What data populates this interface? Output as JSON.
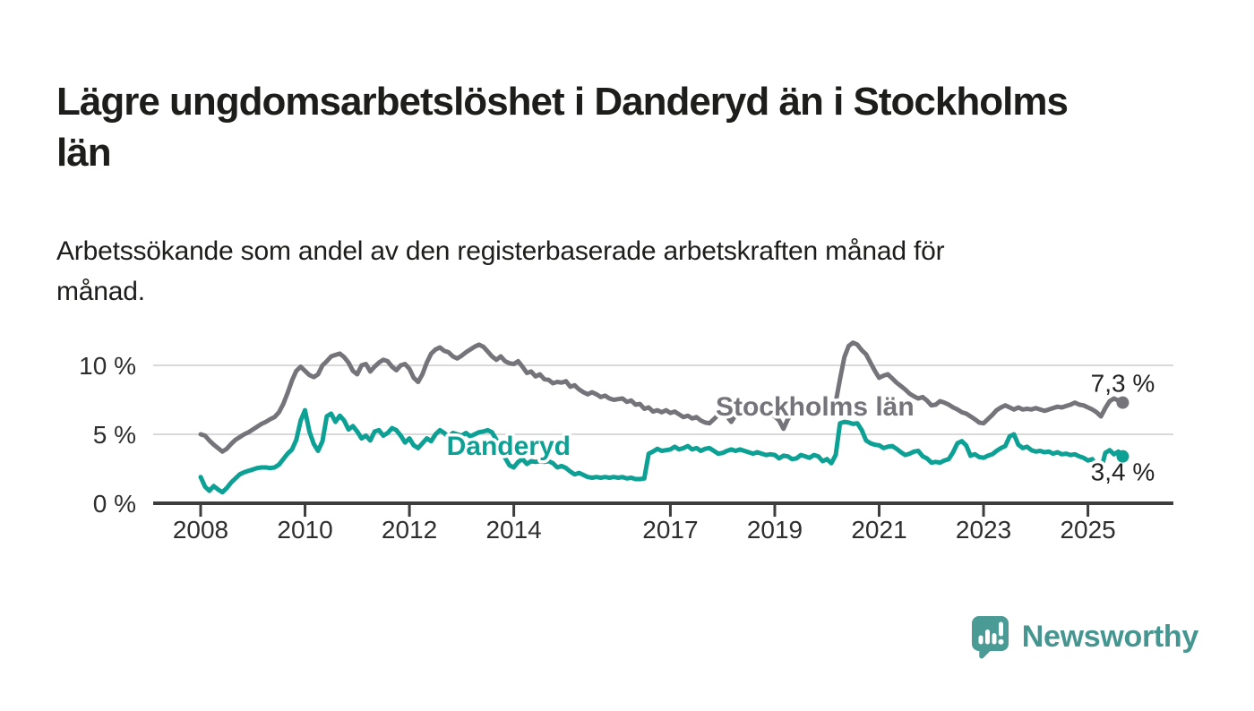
{
  "header": {
    "title_line1": "Lägre ungdomsarbetslöshet i Danderyd än i Stockholms",
    "title_line2": "län",
    "subtitle_line1": "Arbetssökande som andel av den registerbaserade arbetskraften månad för",
    "subtitle_line2": "månad."
  },
  "footer": {
    "brand": "Newsworthy"
  },
  "colors": {
    "text_dark": "#1d1d1b",
    "gray_series": "#75747a",
    "teal_series": "#0da094",
    "grid": "#d9d9d9",
    "axis": "#3d3d3d",
    "axis_label": "#2e2e2e",
    "annotation": "#222222",
    "logo_teal": "#4a9b95"
  },
  "chart_data": {
    "type": "line",
    "title": "Lägre ungdomsarbetslöshet i Danderyd än i Stockholms län",
    "subtitle": "Arbetssökande som andel av den registerbaserade arbetskraften månad för månad.",
    "unit": "%",
    "grid": true,
    "legend_position": "inline-labels",
    "x_axis": {
      "ticks": [
        2008,
        2010,
        2012,
        2014,
        2017,
        2019,
        2021,
        2023,
        2025
      ],
      "range": [
        2007.1,
        2026.6
      ]
    },
    "y_axis": {
      "ticks": [
        {
          "value": 0,
          "label": "0 %"
        },
        {
          "value": 5,
          "label": "5 %"
        },
        {
          "value": 10,
          "label": "10 %"
        }
      ],
      "gridlines": [
        5,
        10
      ],
      "range": [
        0,
        12.5
      ]
    },
    "series": [
      {
        "name": "Stockholms län",
        "color": "#75747a",
        "label_anchor": {
          "year": 2019.77,
          "value": 6.35
        },
        "end_label": "7,3 %",
        "end_label_position": "above",
        "end_value": 7.3,
        "start_year": 2008,
        "values": [
          5.0,
          4.9,
          4.55,
          4.25,
          4.0,
          3.75,
          3.95,
          4.3,
          4.6,
          4.8,
          5.0,
          5.15,
          5.35,
          5.55,
          5.75,
          5.9,
          6.1,
          6.25,
          6.6,
          7.2,
          8.0,
          8.9,
          9.6,
          9.9,
          9.6,
          9.3,
          9.15,
          9.35,
          10.0,
          10.3,
          10.65,
          10.75,
          10.85,
          10.6,
          10.2,
          9.6,
          9.35,
          10.0,
          10.1,
          9.55,
          9.9,
          10.2,
          10.4,
          10.3,
          9.9,
          9.65,
          10.0,
          10.1,
          9.75,
          9.1,
          8.8,
          9.35,
          10.2,
          10.85,
          11.15,
          11.3,
          11.05,
          10.95,
          10.65,
          10.5,
          10.7,
          10.95,
          11.15,
          11.35,
          11.5,
          11.35,
          11.0,
          10.65,
          10.4,
          10.65,
          10.3,
          10.15,
          10.1,
          10.3,
          9.9,
          9.45,
          9.55,
          9.2,
          9.35,
          9.0,
          8.95,
          8.7,
          8.8,
          8.75,
          8.85,
          8.45,
          8.55,
          8.25,
          8.05,
          7.9,
          8.05,
          7.9,
          7.7,
          7.8,
          7.6,
          7.5,
          7.55,
          7.6,
          7.35,
          7.45,
          7.15,
          7.2,
          6.85,
          6.95,
          6.65,
          6.75,
          6.6,
          6.75,
          6.55,
          6.65,
          6.45,
          6.25,
          6.35,
          6.15,
          6.25,
          6.0,
          5.85,
          5.8,
          6.1,
          6.4,
          6.55,
          6.3,
          5.9,
          6.4,
          6.6,
          6.75,
          6.7,
          6.8,
          6.7,
          6.6,
          6.65,
          6.55,
          6.3,
          6.0,
          5.4,
          6.1,
          6.5,
          6.65,
          6.55,
          6.7,
          6.6,
          6.65,
          6.55,
          6.6,
          6.7,
          6.8,
          7.3,
          9.0,
          10.6,
          11.4,
          11.65,
          11.5,
          11.1,
          10.8,
          10.2,
          9.6,
          9.1,
          9.25,
          9.35,
          9.05,
          8.75,
          8.5,
          8.25,
          7.95,
          7.75,
          7.6,
          7.7,
          7.45,
          7.1,
          7.15,
          7.4,
          7.3,
          7.15,
          6.95,
          6.8,
          6.6,
          6.5,
          6.3,
          6.1,
          5.85,
          5.8,
          6.1,
          6.4,
          6.75,
          6.95,
          7.1,
          6.95,
          6.8,
          6.95,
          6.8,
          6.85,
          6.8,
          6.9,
          6.8,
          6.7,
          6.8,
          6.9,
          7.0,
          6.95,
          7.05,
          7.15,
          7.3,
          7.15,
          7.1,
          6.95,
          6.8,
          6.6,
          6.3,
          6.9,
          7.4,
          7.6,
          7.45,
          7.3
        ]
      },
      {
        "name": "Danderyd",
        "color": "#0da094",
        "label_anchor": {
          "year": 2013.9,
          "value": 3.5
        },
        "end_label": "3,4 %",
        "end_label_position": "below",
        "end_value": 3.4,
        "start_year": 2008,
        "values": [
          1.9,
          1.2,
          0.9,
          1.25,
          1.0,
          0.8,
          1.1,
          1.5,
          1.8,
          2.1,
          2.25,
          2.35,
          2.45,
          2.55,
          2.6,
          2.6,
          2.55,
          2.6,
          2.8,
          3.2,
          3.6,
          3.9,
          4.6,
          6.0,
          6.75,
          5.2,
          4.3,
          3.8,
          4.5,
          6.3,
          6.5,
          5.9,
          6.35,
          6.0,
          5.35,
          5.6,
          5.2,
          4.7,
          4.9,
          4.55,
          5.2,
          5.3,
          4.9,
          5.1,
          5.45,
          5.3,
          4.9,
          4.4,
          4.7,
          4.2,
          4.0,
          4.35,
          4.7,
          4.5,
          5.0,
          5.3,
          5.1,
          4.8,
          5.1,
          5.0,
          4.9,
          5.1,
          4.85,
          5.0,
          5.15,
          5.2,
          5.3,
          5.15,
          4.6,
          3.9,
          3.3,
          2.75,
          2.6,
          3.0,
          3.2,
          2.85,
          3.05,
          3.0,
          3.05,
          3.0,
          3.05,
          2.9,
          2.6,
          2.7,
          2.55,
          2.3,
          2.1,
          2.2,
          2.05,
          1.9,
          1.85,
          1.9,
          1.85,
          1.9,
          1.85,
          1.9,
          1.85,
          1.9,
          1.8,
          1.85,
          1.75,
          1.75,
          1.8,
          3.6,
          3.75,
          3.95,
          3.8,
          3.85,
          3.9,
          4.1,
          3.9,
          4.0,
          4.15,
          3.9,
          4.0,
          3.8,
          3.95,
          4.0,
          3.8,
          3.6,
          3.65,
          3.8,
          3.9,
          3.8,
          3.9,
          3.8,
          3.7,
          3.6,
          3.7,
          3.6,
          3.5,
          3.55,
          3.5,
          3.25,
          3.45,
          3.4,
          3.2,
          3.25,
          3.5,
          3.4,
          3.3,
          3.5,
          3.4,
          3.05,
          3.2,
          2.9,
          3.5,
          5.8,
          5.9,
          5.85,
          5.75,
          5.8,
          5.3,
          4.55,
          4.35,
          4.25,
          4.2,
          4.0,
          4.1,
          4.15,
          3.95,
          3.7,
          3.5,
          3.6,
          3.75,
          3.8,
          3.4,
          3.25,
          2.95,
          3.0,
          2.95,
          3.1,
          3.2,
          3.7,
          4.35,
          4.5,
          4.2,
          3.45,
          3.55,
          3.35,
          3.3,
          3.45,
          3.55,
          3.8,
          4.0,
          4.15,
          4.85,
          5.0,
          4.25,
          4.0,
          4.1,
          3.85,
          3.75,
          3.8,
          3.7,
          3.75,
          3.6,
          3.7,
          3.55,
          3.6,
          3.5,
          3.55,
          3.4,
          3.3,
          3.1,
          3.2,
          2.7,
          2.45,
          3.65,
          3.85,
          3.55,
          3.75,
          3.4
        ]
      }
    ]
  }
}
